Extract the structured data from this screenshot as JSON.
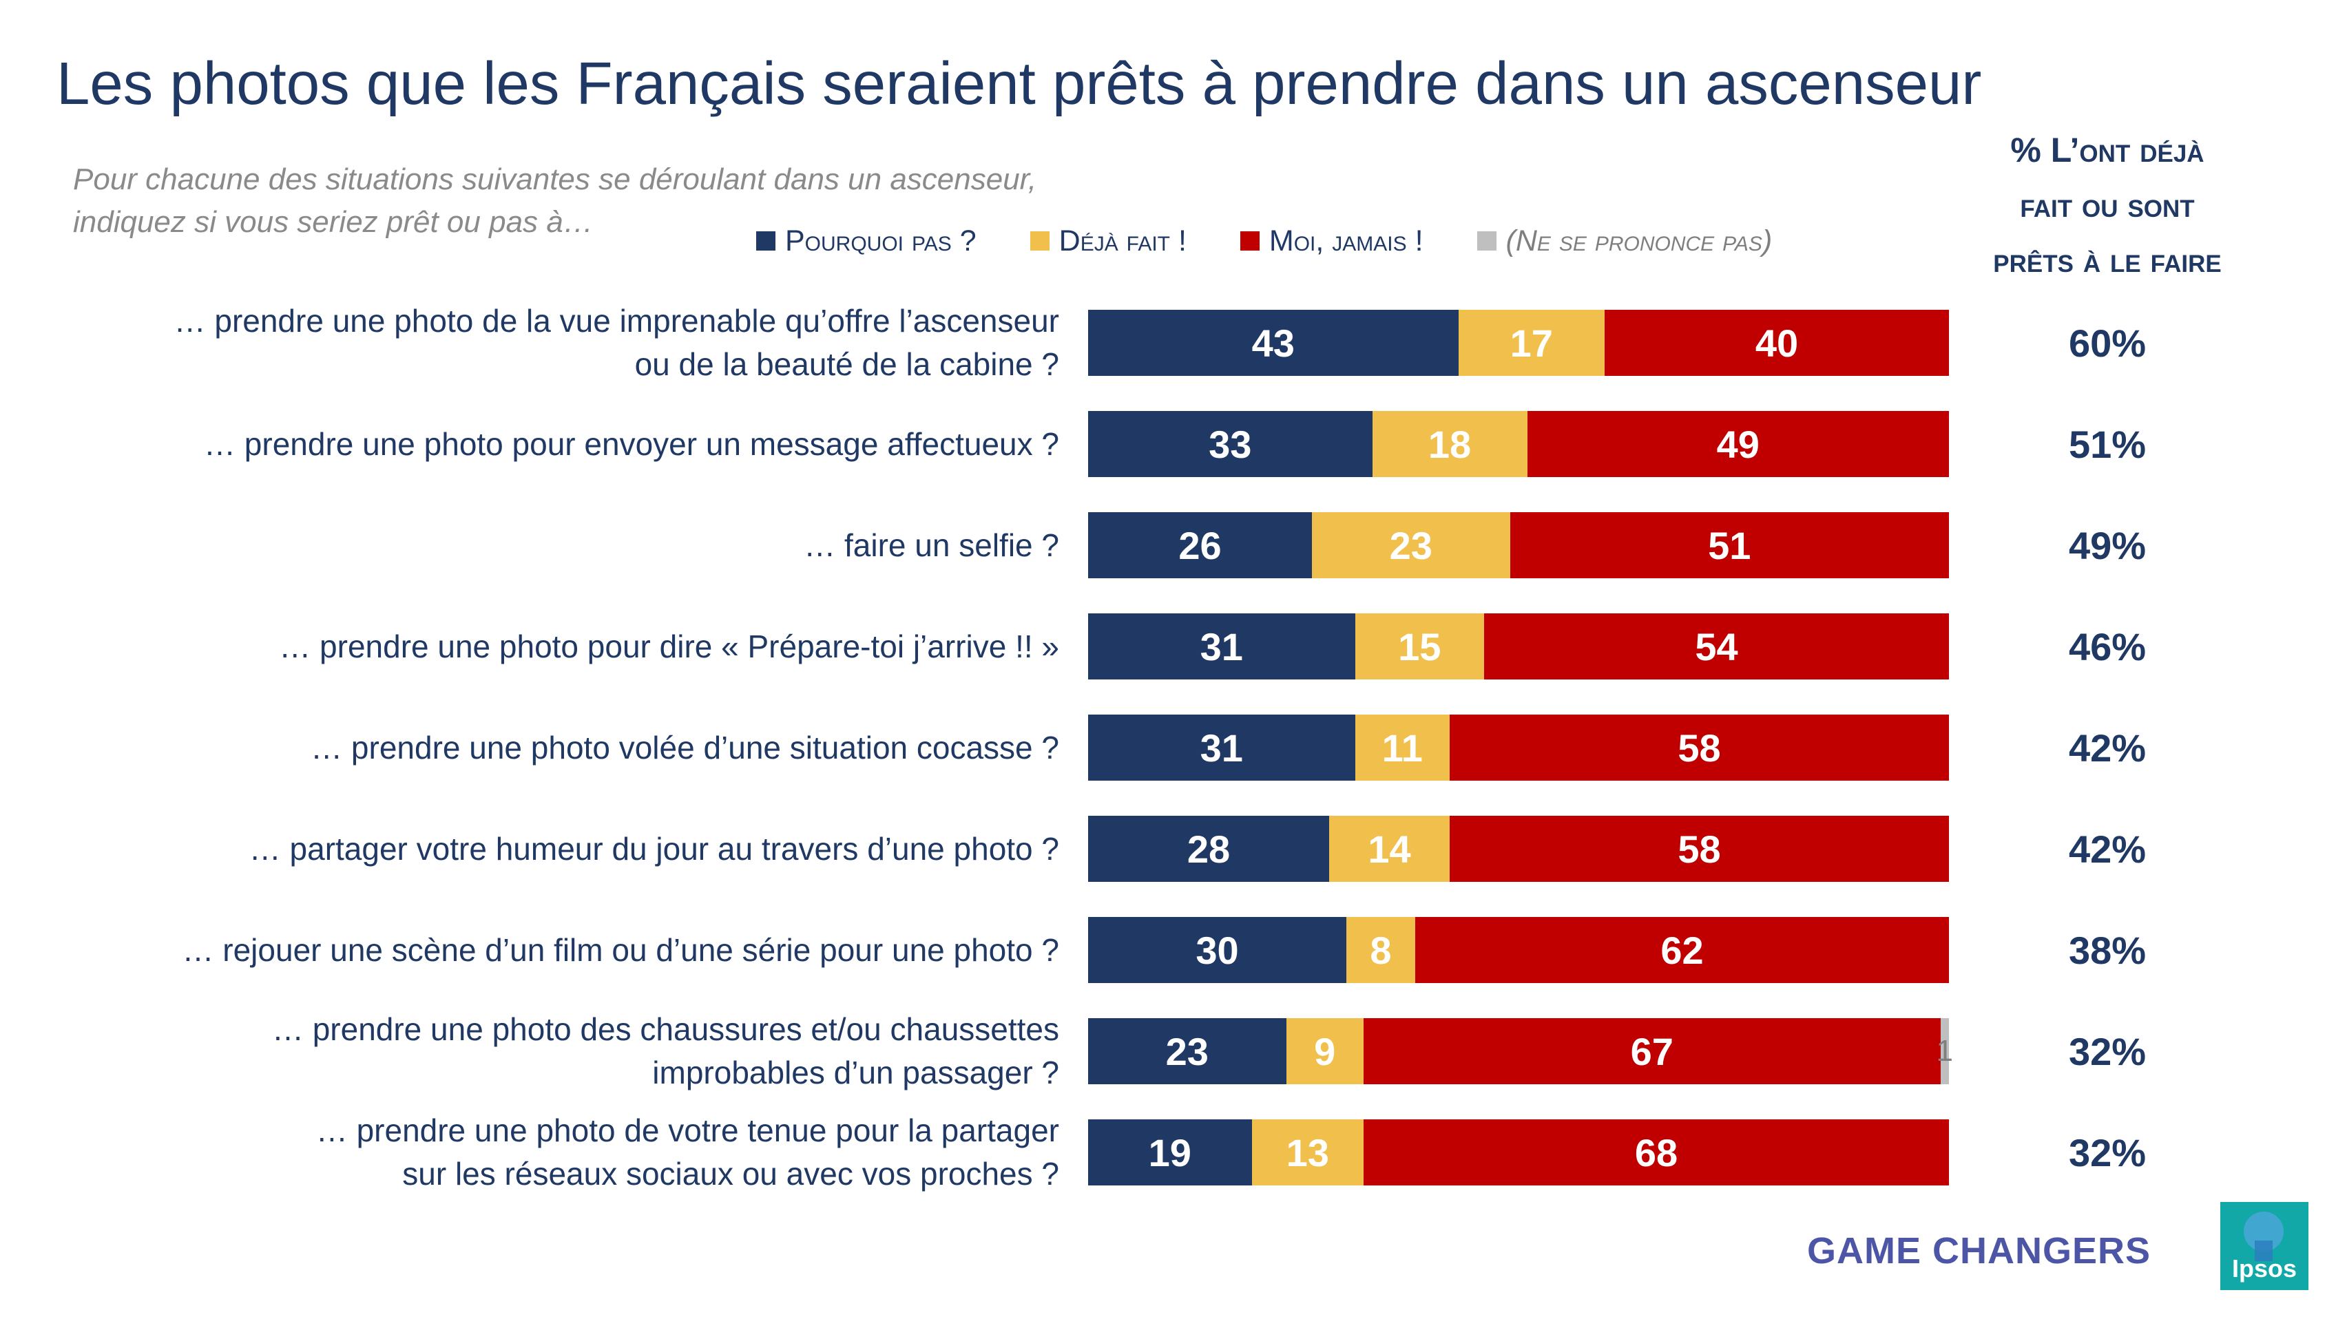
{
  "title": "Les photos que les Français seraient prêts à prendre dans un ascenseur",
  "subtitle_line1": "Pour chacune des situations suivantes se déroulant dans un ascenseur,",
  "subtitle_line2": "indiquez si vous seriez prêt ou pas à…",
  "column_header": [
    "% L’ont déjà",
    "fait ou sont",
    "prêts à le faire"
  ],
  "legend": [
    {
      "label": "Pourquoi pas ?",
      "color": "#1f3864"
    },
    {
      "label": "Déjà fait !",
      "color": "#f0bf4c"
    },
    {
      "label": "Moi, jamais !",
      "color": "#c00000"
    },
    {
      "label": "(Ne se prononce pas)",
      "color": "#bfbfbf"
    }
  ],
  "chart_data": {
    "type": "bar",
    "orientation": "horizontal",
    "stacked": true,
    "title": "Les photos que les Français seraient prêts à prendre dans un ascenseur",
    "xlim": [
      0,
      100
    ],
    "categories": [
      [
        "… prendre une photo de la vue imprenable qu’offre l’ascenseur",
        "ou de la beauté de la cabine ?"
      ],
      [
        "… prendre une photo pour envoyer un message affectueux ?"
      ],
      [
        "… faire un selfie ?"
      ],
      [
        "… prendre une photo pour dire « Prépare-toi j’arrive !! »"
      ],
      [
        "… prendre une photo volée d’une situation cocasse ?"
      ],
      [
        "… partager votre humeur du jour au travers d’une photo ?"
      ],
      [
        "… rejouer une scène d’un film ou d’une série pour une photo ?"
      ],
      [
        "… prendre une photo des chaussures et/ou chaussettes",
        "improbables d’un passager ?"
      ],
      [
        "… prendre une photo de votre tenue pour la partager",
        "sur les réseaux sociaux ou avec vos proches ?"
      ]
    ],
    "series": [
      {
        "name": "Pourquoi pas ?",
        "color": "#1f3864",
        "values": [
          43,
          33,
          26,
          31,
          31,
          28,
          30,
          23,
          19
        ]
      },
      {
        "name": "Déjà fait !",
        "color": "#f0bf4c",
        "values": [
          17,
          18,
          23,
          15,
          11,
          14,
          8,
          9,
          13
        ]
      },
      {
        "name": "Moi, jamais !",
        "color": "#c00000",
        "values": [
          40,
          49,
          51,
          54,
          58,
          58,
          62,
          67,
          68
        ]
      },
      {
        "name": "(Ne se prononce pas)",
        "color": "#bfbfbf",
        "values": [
          0,
          0,
          0,
          0,
          0,
          0,
          0,
          1,
          0
        ]
      }
    ],
    "summary_values": [
      "60%",
      "51%",
      "49%",
      "46%",
      "42%",
      "42%",
      "38%",
      "32%",
      "32%"
    ]
  },
  "footer": {
    "brand": "GAME CHANGERS",
    "logo_text": "Ipsos"
  }
}
